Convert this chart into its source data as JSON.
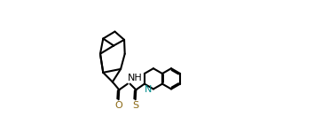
{
  "bg_color": "#ffffff",
  "line_color": "#000000",
  "color_O": "#8B6914",
  "color_S": "#8B6914",
  "color_N": "#008B8B",
  "color_NH": "#000000",
  "lw": 1.5,
  "figsize": [
    3.54,
    1.32
  ],
  "dpi": 100,
  "xlim": [
    -0.05,
    1.05
  ],
  "ylim": [
    0.0,
    1.0
  ]
}
